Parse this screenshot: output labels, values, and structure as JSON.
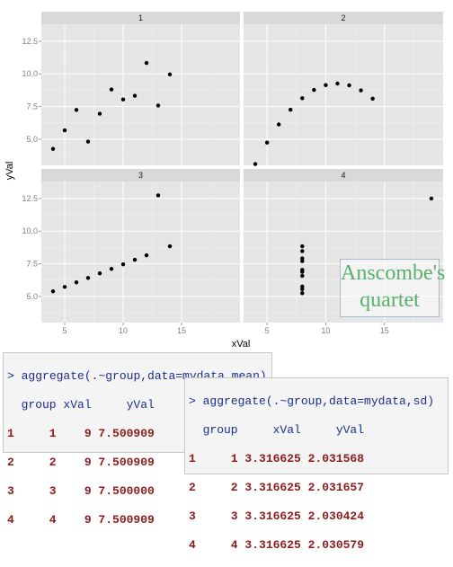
{
  "chart_data": {
    "type": "scatter",
    "facet_strips": [
      "1",
      "2",
      "3",
      "4"
    ],
    "xlabel": "xVal",
    "ylabel": "yVal",
    "xlim": [
      3,
      20
    ],
    "ylim": [
      3,
      13.8
    ],
    "x_ticks": [
      5,
      10,
      15
    ],
    "y_ticks": [
      5.0,
      7.5,
      10.0,
      12.5
    ],
    "x_tick_labels": [
      "5",
      "10",
      "15"
    ],
    "y_tick_labels": [
      "5.0",
      "7.5",
      "10.0",
      "12.5"
    ],
    "grid": true,
    "panels": [
      {
        "name": "1",
        "x": [
          10,
          8,
          13,
          9,
          11,
          14,
          6,
          4,
          12,
          7,
          5
        ],
        "y": [
          8.04,
          6.95,
          7.58,
          8.81,
          8.33,
          9.96,
          7.24,
          4.26,
          10.84,
          4.82,
          5.68
        ]
      },
      {
        "name": "2",
        "x": [
          10,
          8,
          13,
          9,
          11,
          14,
          6,
          4,
          12,
          7,
          5
        ],
        "y": [
          9.14,
          8.14,
          8.74,
          8.77,
          9.26,
          8.1,
          6.13,
          3.1,
          9.13,
          7.26,
          4.74
        ]
      },
      {
        "name": "3",
        "x": [
          10,
          8,
          13,
          9,
          11,
          14,
          6,
          4,
          12,
          7,
          5
        ],
        "y": [
          7.46,
          6.77,
          12.74,
          7.11,
          7.81,
          8.84,
          6.08,
          5.39,
          8.15,
          6.42,
          5.73
        ]
      },
      {
        "name": "4",
        "x": [
          8,
          8,
          8,
          8,
          8,
          8,
          8,
          19,
          8,
          8,
          8
        ],
        "y": [
          6.58,
          5.76,
          7.71,
          8.84,
          8.47,
          7.04,
          5.25,
          12.5,
          5.56,
          7.91,
          6.89
        ]
      }
    ]
  },
  "overlay_text": {
    "line1": "Anscombe's",
    "line2": "quartet"
  },
  "console_mean": {
    "prompt": ">",
    "command": "aggregate(.~group,data=mydata,mean)",
    "header": "  group xVal     yVal",
    "rows": [
      "1     1    9 7.500909",
      "2     2    9 7.500909",
      "3     3    9 7.500000",
      "4     4    9 7.500909"
    ]
  },
  "console_sd": {
    "prompt": ">",
    "command": "aggregate(.~group,data=mydata,sd)",
    "header": "  group     xVal     yVal",
    "rows": [
      "1     1 3.316625 2.031568",
      "2     2 3.316625 2.031657",
      "3     3 3.316625 2.030424",
      "4     4 3.316625 2.030579"
    ]
  }
}
